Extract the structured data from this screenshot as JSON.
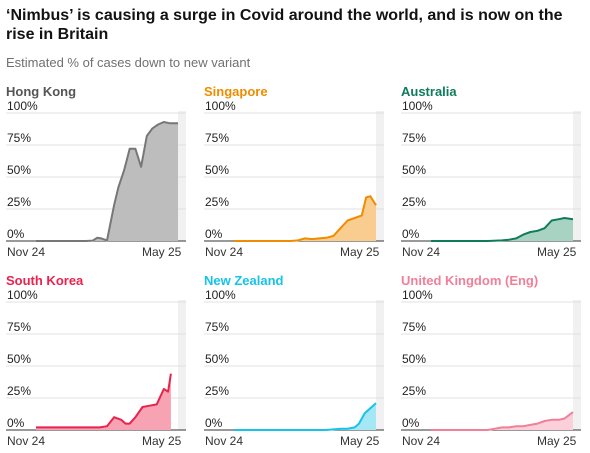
{
  "header": {
    "title": "‘Nimbus’ is causing a surge in Covid around the world, and is now on the rise in Britain",
    "subtitle": "Estimated % of cases down to new variant"
  },
  "chart_data": [
    {
      "type": "area",
      "title": "Hong Kong",
      "color": "#777777",
      "fill": "#bdbdbd",
      "yticks": [
        "100%",
        "75%",
        "50%",
        "25%",
        "0%"
      ],
      "ylim": [
        0,
        100
      ],
      "x_labels": [
        "Nov 24",
        "May 25"
      ],
      "grid": true,
      "x": [
        0,
        0.05,
        0.1,
        0.15,
        0.2,
        0.25,
        0.3,
        0.35,
        0.4,
        0.43,
        0.46,
        0.5,
        0.55,
        0.58,
        0.62,
        0.66,
        0.7,
        0.74,
        0.78,
        0.82,
        0.86,
        0.9,
        0.94,
        1.0
      ],
      "values": [
        0,
        0,
        0,
        0,
        0,
        0,
        0,
        0,
        0.3,
        2.5,
        2,
        0.5,
        28,
        42,
        55,
        72,
        72,
        58,
        82,
        88,
        91,
        93,
        92,
        92
      ]
    },
    {
      "type": "area",
      "title": "Singapore",
      "color": "#f08c00",
      "fill": "#f9cc8f",
      "yticks": [
        "100%",
        "75%",
        "50%",
        "25%",
        "0%"
      ],
      "ylim": [
        0,
        100
      ],
      "x_labels": [
        "Nov 24",
        "May 25"
      ],
      "grid": true,
      "x": [
        0,
        0.1,
        0.2,
        0.3,
        0.4,
        0.45,
        0.5,
        0.55,
        0.6,
        0.65,
        0.7,
        0.75,
        0.8,
        0.85,
        0.9,
        0.93,
        0.96,
        1.0
      ],
      "values": [
        0,
        0,
        0,
        0,
        0,
        0.5,
        2,
        1.5,
        2,
        2.5,
        4,
        10,
        16,
        18,
        20,
        34,
        35,
        28
      ]
    },
    {
      "type": "area",
      "title": "Australia",
      "color": "#0e7c5a",
      "fill": "#a8d3c2",
      "yticks": [
        "100%",
        "75%",
        "50%",
        "25%",
        "0%"
      ],
      "ylim": [
        0,
        100
      ],
      "x_labels": [
        "Nov 24",
        "May 25"
      ],
      "grid": true,
      "x": [
        0,
        0.4,
        0.5,
        0.55,
        0.6,
        0.65,
        0.7,
        0.75,
        0.8,
        0.85,
        0.9,
        0.94,
        1.0
      ],
      "values": [
        0,
        0,
        0.5,
        1,
        2,
        5,
        7,
        8,
        10,
        16,
        17,
        18,
        17
      ]
    },
    {
      "type": "area",
      "title": "South Korea",
      "color": "#e8234d",
      "fill": "#f7a3b3",
      "yticks": [
        "100%",
        "75%",
        "50%",
        "25%",
        "0%"
      ],
      "ylim": [
        0,
        100
      ],
      "x_labels": [
        "Nov 24",
        "May 25"
      ],
      "grid": true,
      "x": [
        0,
        0.1,
        0.2,
        0.3,
        0.4,
        0.45,
        0.5,
        0.55,
        0.6,
        0.63,
        0.66,
        0.7,
        0.75,
        0.8,
        0.85,
        0.9,
        0.93,
        0.95
      ],
      "values": [
        2,
        2,
        2,
        2,
        2,
        2,
        3,
        10,
        8,
        5,
        5,
        10,
        18,
        19,
        20,
        32,
        30,
        44
      ]
    },
    {
      "type": "area",
      "title": "New Zealand",
      "color": "#17c3e8",
      "fill": "#a5e7f5",
      "yticks": [
        "100%",
        "75%",
        "50%",
        "25%",
        "0%"
      ],
      "ylim": [
        0,
        100
      ],
      "x_labels": [
        "Nov 24",
        "May 25"
      ],
      "grid": true,
      "x": [
        0,
        0.6,
        0.65,
        0.7,
        0.75,
        0.8,
        0.85,
        0.88,
        0.92,
        0.96,
        1.0
      ],
      "values": [
        0,
        0,
        0,
        0.5,
        1,
        1,
        2,
        5,
        13,
        17,
        21
      ]
    },
    {
      "type": "area",
      "title": "United Kingdom (Eng)",
      "color": "#f07f98",
      "fill": "#fbd0da",
      "yticks": [
        "100%",
        "75%",
        "50%",
        "25%",
        "0%"
      ],
      "ylim": [
        0,
        100
      ],
      "x_labels": [
        "Nov 24",
        "May 25"
      ],
      "grid": true,
      "x": [
        0,
        0.4,
        0.45,
        0.5,
        0.55,
        0.6,
        0.65,
        0.7,
        0.75,
        0.8,
        0.85,
        0.9,
        0.94,
        1.0
      ],
      "values": [
        0,
        0,
        1,
        2,
        2,
        3,
        3,
        4,
        5,
        7,
        8,
        8,
        9,
        14
      ]
    }
  ]
}
